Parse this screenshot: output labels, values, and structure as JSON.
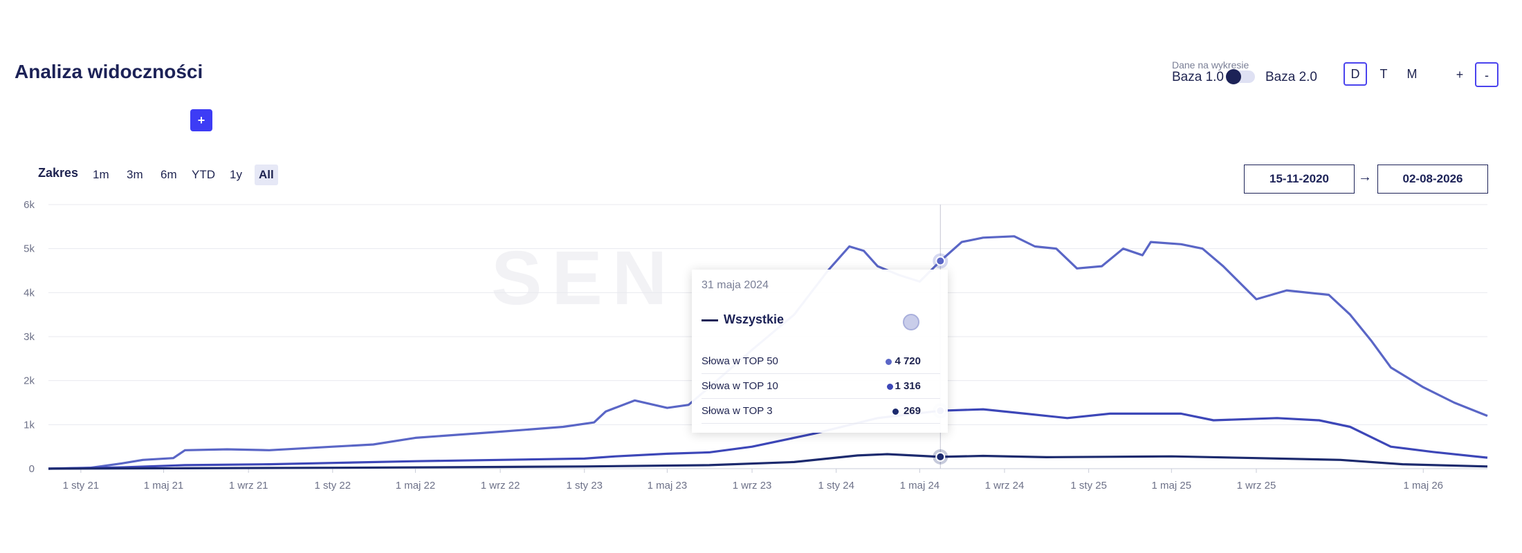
{
  "header": {
    "title": "Analiza widoczności",
    "add_label": "+",
    "data_caption": "Dane na wykresie",
    "base_left": "Baza 1.0",
    "base_right": "Baza 2.0",
    "granularity": [
      {
        "label": "D",
        "active": true
      },
      {
        "label": "T",
        "active": false
      },
      {
        "label": "M",
        "active": false
      }
    ],
    "zoom_in": "+",
    "zoom_out": "-"
  },
  "range": {
    "label": "Zakres",
    "buttons": [
      {
        "label": "1m",
        "active": false
      },
      {
        "label": "3m",
        "active": false
      },
      {
        "label": "6m",
        "active": false
      },
      {
        "label": "YTD",
        "active": false
      },
      {
        "label": "1y",
        "active": false
      },
      {
        "label": "All",
        "active": true
      }
    ],
    "date_from": "15-11-2020",
    "date_to": "02-08-2026",
    "arrow": "→"
  },
  "tooltip": {
    "date": "31 maja 2024",
    "series": "Wszystkie",
    "rows": [
      {
        "label": "Słowa w TOP 50",
        "value": "4 720",
        "color": "#5a66c6"
      },
      {
        "label": "Słowa w TOP 10",
        "value": "1 316",
        "color": "#3d47b8"
      },
      {
        "label": "Słowa w TOP 3",
        "value": "269",
        "color": "#1c2a6e"
      }
    ]
  },
  "chart_data": {
    "type": "line",
    "watermark": "SEN",
    "y_ticks": [
      "0",
      "1k",
      "2k",
      "3k",
      "4k",
      "5k",
      "6k"
    ],
    "ylim": [
      0,
      6000
    ],
    "xlim": [
      "2020-11-15",
      "2026-08-02"
    ],
    "x_ticks": [
      {
        "label": "1 sty 21",
        "date": "2021-01-01"
      },
      {
        "label": "1 maj 21",
        "date": "2021-05-01"
      },
      {
        "label": "1 wrz 21",
        "date": "2021-09-01"
      },
      {
        "label": "1 sty 22",
        "date": "2022-01-01"
      },
      {
        "label": "1 maj 22",
        "date": "2022-05-01"
      },
      {
        "label": "1 wrz 22",
        "date": "2022-09-01"
      },
      {
        "label": "1 sty 23",
        "date": "2023-01-01"
      },
      {
        "label": "1 maj 23",
        "date": "2023-05-01"
      },
      {
        "label": "1 wrz 23",
        "date": "2023-09-01"
      },
      {
        "label": "1 sty 24",
        "date": "2024-01-01"
      },
      {
        "label": "1 maj 24",
        "date": "2024-05-01"
      },
      {
        "label": "1 wrz 24",
        "date": "2024-09-01"
      },
      {
        "label": "1 sty 25",
        "date": "2025-01-01"
      },
      {
        "label": "1 maj 25",
        "date": "2025-05-01"
      },
      {
        "label": "1 wrz 25",
        "date": "2025-09-01"
      },
      {
        "label": "1 maj 26",
        "date": "2026-05-01"
      }
    ],
    "crosshair_date": "2024-05-31",
    "grid": true,
    "series": [
      {
        "name": "Słowa w TOP 50",
        "color": "#5a66c6",
        "points": [
          [
            "2020-11-15",
            0
          ],
          [
            "2021-01-15",
            20
          ],
          [
            "2021-03-01",
            120
          ],
          [
            "2021-04-01",
            200
          ],
          [
            "2021-05-15",
            240
          ],
          [
            "2021-06-01",
            420
          ],
          [
            "2021-08-01",
            440
          ],
          [
            "2021-10-01",
            420
          ],
          [
            "2022-01-01",
            500
          ],
          [
            "2022-03-01",
            550
          ],
          [
            "2022-05-01",
            700
          ],
          [
            "2022-09-01",
            840
          ],
          [
            "2022-12-01",
            950
          ],
          [
            "2023-01-15",
            1050
          ],
          [
            "2023-02-01",
            1300
          ],
          [
            "2023-03-15",
            1550
          ],
          [
            "2023-05-01",
            1380
          ],
          [
            "2023-06-01",
            1450
          ],
          [
            "2023-07-01",
            1850
          ],
          [
            "2023-09-01",
            2700
          ],
          [
            "2023-11-01",
            3500
          ],
          [
            "2023-12-20",
            4500
          ],
          [
            "2024-01-20",
            5050
          ],
          [
            "2024-02-10",
            4950
          ],
          [
            "2024-03-01",
            4600
          ],
          [
            "2024-04-01",
            4400
          ],
          [
            "2024-05-01",
            4250
          ],
          [
            "2024-05-31",
            4720
          ],
          [
            "2024-07-01",
            5150
          ],
          [
            "2024-08-01",
            5250
          ],
          [
            "2024-09-15",
            5280
          ],
          [
            "2024-10-15",
            5050
          ],
          [
            "2024-11-15",
            5000
          ],
          [
            "2024-12-15",
            4550
          ],
          [
            "2025-01-20",
            4600
          ],
          [
            "2025-02-20",
            5000
          ],
          [
            "2025-03-20",
            4850
          ],
          [
            "2025-04-01",
            5150
          ],
          [
            "2025-05-15",
            5100
          ],
          [
            "2025-06-15",
            5000
          ],
          [
            "2025-07-15",
            4600
          ],
          [
            "2025-09-01",
            3850
          ],
          [
            "2025-10-15",
            4050
          ],
          [
            "2025-12-15",
            3950
          ],
          [
            "2026-01-15",
            3500
          ],
          [
            "2026-02-15",
            2900
          ],
          [
            "2026-03-15",
            2300
          ],
          [
            "2026-05-01",
            1850
          ],
          [
            "2026-06-15",
            1500
          ],
          [
            "2026-08-02",
            1200
          ]
        ]
      },
      {
        "name": "Słowa w TOP 10",
        "color": "#3d47b8",
        "points": [
          [
            "2020-11-15",
            0
          ],
          [
            "2021-03-01",
            30
          ],
          [
            "2021-06-01",
            80
          ],
          [
            "2021-10-01",
            100
          ],
          [
            "2022-01-01",
            130
          ],
          [
            "2022-05-01",
            170
          ],
          [
            "2022-09-01",
            200
          ],
          [
            "2023-01-01",
            230
          ],
          [
            "2023-02-15",
            280
          ],
          [
            "2023-05-01",
            340
          ],
          [
            "2023-07-01",
            370
          ],
          [
            "2023-09-01",
            500
          ],
          [
            "2023-12-01",
            800
          ],
          [
            "2024-03-01",
            1150
          ],
          [
            "2024-05-31",
            1316
          ],
          [
            "2024-08-01",
            1350
          ],
          [
            "2024-10-01",
            1250
          ],
          [
            "2024-12-01",
            1150
          ],
          [
            "2025-02-01",
            1250
          ],
          [
            "2025-04-01",
            1250
          ],
          [
            "2025-05-15",
            1250
          ],
          [
            "2025-07-01",
            1100
          ],
          [
            "2025-10-01",
            1150
          ],
          [
            "2025-12-01",
            1100
          ],
          [
            "2026-01-15",
            950
          ],
          [
            "2026-03-15",
            500
          ],
          [
            "2026-05-15",
            380
          ],
          [
            "2026-08-02",
            250
          ]
        ]
      },
      {
        "name": "Słowa w TOP 3",
        "color": "#1c2a6e",
        "points": [
          [
            "2020-11-15",
            0
          ],
          [
            "2021-06-01",
            10
          ],
          [
            "2022-01-01",
            20
          ],
          [
            "2022-09-01",
            40
          ],
          [
            "2023-01-01",
            50
          ],
          [
            "2023-07-01",
            80
          ],
          [
            "2023-11-01",
            150
          ],
          [
            "2024-02-01",
            300
          ],
          [
            "2024-03-15",
            330
          ],
          [
            "2024-05-31",
            269
          ],
          [
            "2024-08-01",
            290
          ],
          [
            "2024-11-01",
            260
          ],
          [
            "2025-02-01",
            270
          ],
          [
            "2025-05-01",
            280
          ],
          [
            "2025-09-01",
            240
          ],
          [
            "2026-01-01",
            200
          ],
          [
            "2026-04-01",
            100
          ],
          [
            "2026-08-02",
            50
          ]
        ]
      }
    ]
  }
}
